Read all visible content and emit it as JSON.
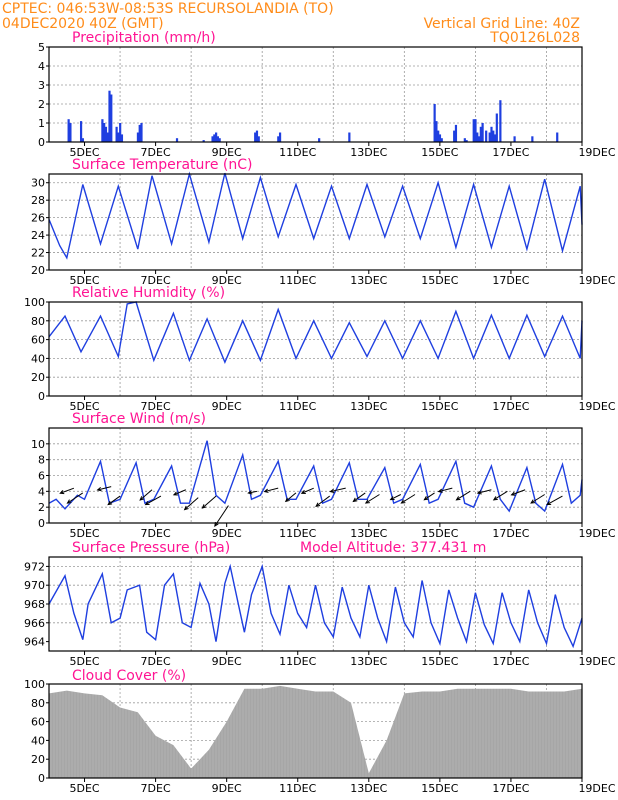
{
  "header": {
    "line1_left": "CPTEC:   046:53W-08:53S   RECURSOLANDIA (TO)",
    "line2_left": "04DEC2020 40Z (GMT)",
    "line2_right": "Vertical Grid Line: 40Z",
    "line3_right": "TQ0126L028"
  },
  "colors": {
    "header": "#ff8c1a",
    "panel_title": "#ff1493",
    "line": "#1f3fe0",
    "bar": "#1f3fe0",
    "cloud": "#a6a6a6",
    "arrow": "#000000",
    "grid": "#9a9a9a"
  },
  "chart_data": [
    {
      "type": "bar",
      "title": "Precipitation (mm/h)",
      "ylim": [
        0,
        5
      ],
      "yticks": [
        "0",
        "1",
        "2",
        "3",
        "4",
        "5"
      ],
      "xticklabels": [
        "5DEC",
        "7DEC",
        "9DEC",
        "11DEC",
        "13DEC",
        "15DEC",
        "17DEC",
        "19DEC"
      ],
      "grid": true,
      "series": [
        {
          "x": [
            4.55,
            4.6,
            4.9,
            4.95,
            5.5,
            5.55,
            5.6,
            5.65,
            5.7,
            5.75,
            5.9,
            5.95,
            6.0,
            6.05,
            6.5,
            6.55,
            6.6,
            7.6,
            8.35,
            8.6,
            8.65,
            8.7,
            8.75,
            8.8,
            9.8,
            9.85,
            9.9,
            10.45,
            10.5,
            11.6,
            12.45,
            14.85,
            14.9,
            14.95,
            15.0,
            15.05,
            15.4,
            15.45,
            15.7,
            15.75,
            15.95,
            16.0,
            16.05,
            16.1,
            16.15,
            16.2,
            16.3,
            16.4,
            16.45,
            16.5,
            16.55,
            16.6,
            16.7,
            17.1,
            17.6,
            18.3
          ],
          "values": [
            1.2,
            1.0,
            1.1,
            0.2,
            1.2,
            1.0,
            0.8,
            0.5,
            2.7,
            2.5,
            0.8,
            0.5,
            1.0,
            0.4,
            0.5,
            0.9,
            1.0,
            0.2,
            0.1,
            0.3,
            0.4,
            0.5,
            0.3,
            0.2,
            0.5,
            0.6,
            0.3,
            0.3,
            0.5,
            0.2,
            0.5,
            2.0,
            1.1,
            0.6,
            0.4,
            0.2,
            0.6,
            0.9,
            0.2,
            0.1,
            1.2,
            1.2,
            0.5,
            0.3,
            0.8,
            1.0,
            0.6,
            0.5,
            0.8,
            0.6,
            0.4,
            1.5,
            2.2,
            0.3,
            0.3,
            0.5
          ]
        }
      ]
    },
    {
      "type": "line",
      "title": "Surface Temperature (nC)",
      "ylim": [
        20,
        31
      ],
      "yticks": [
        "20",
        "22",
        "24",
        "26",
        "28",
        "30"
      ],
      "xticklabels": [
        "5DEC",
        "7DEC",
        "9DEC",
        "11DEC",
        "13DEC",
        "15DEC",
        "17DEC",
        "19DEC"
      ],
      "grid": true,
      "series": [
        {
          "x": [
            4.0,
            4.3,
            4.5,
            4.95,
            5.45,
            5.95,
            6.5,
            6.9,
            7.45,
            7.95,
            8.5,
            8.95,
            9.45,
            9.95,
            10.45,
            10.95,
            11.45,
            11.95,
            12.45,
            12.95,
            13.45,
            13.95,
            14.45,
            14.95,
            15.45,
            15.95,
            16.45,
            16.95,
            17.45,
            17.95,
            18.45,
            18.95,
            19.0
          ],
          "values": [
            25.8,
            22.8,
            21.4,
            29.8,
            23.0,
            29.6,
            22.4,
            30.8,
            23.0,
            31.0,
            23.2,
            31.1,
            23.6,
            30.6,
            23.8,
            29.8,
            23.6,
            29.6,
            23.6,
            29.8,
            23.8,
            29.6,
            23.6,
            30.0,
            22.6,
            29.8,
            22.6,
            29.6,
            22.4,
            30.4,
            22.2,
            29.6,
            25.2
          ]
        }
      ]
    },
    {
      "type": "line",
      "title": "Relative Humidity (%)",
      "ylim": [
        0,
        100
      ],
      "yticks": [
        "0",
        "20",
        "40",
        "60",
        "80",
        "100"
      ],
      "xticklabels": [
        "5DEC",
        "7DEC",
        "9DEC",
        "11DEC",
        "13DEC",
        "15DEC",
        "17DEC",
        "19DEC"
      ],
      "grid": true,
      "series": [
        {
          "x": [
            4.0,
            4.45,
            4.9,
            5.45,
            5.95,
            6.2,
            6.45,
            6.95,
            7.5,
            7.95,
            8.45,
            8.95,
            9.45,
            9.95,
            10.45,
            10.95,
            11.45,
            11.95,
            12.45,
            12.95,
            13.45,
            13.95,
            14.45,
            14.95,
            15.45,
            15.95,
            16.45,
            16.95,
            17.45,
            17.95,
            18.45,
            18.95,
            19.0
          ],
          "values": [
            63,
            85,
            47,
            85,
            42,
            98,
            100,
            38,
            88,
            38,
            82,
            36,
            80,
            38,
            92,
            40,
            80,
            40,
            78,
            42,
            80,
            40,
            80,
            40,
            90,
            40,
            86,
            40,
            86,
            42,
            85,
            40,
            80
          ]
        }
      ]
    },
    {
      "type": "line",
      "title": "Surface Wind (m/s)",
      "ylim": [
        0,
        12
      ],
      "yticks": [
        "0",
        "2",
        "4",
        "6",
        "8",
        "10"
      ],
      "xticklabels": [
        "5DEC",
        "7DEC",
        "9DEC",
        "11DEC",
        "13DEC",
        "15DEC",
        "17DEC",
        "19DEC"
      ],
      "grid": true,
      "series": [
        {
          "x": [
            4.0,
            4.2,
            4.45,
            4.8,
            5.0,
            5.45,
            5.7,
            6.0,
            6.45,
            6.7,
            6.95,
            7.45,
            7.7,
            7.95,
            8.45,
            8.7,
            8.95,
            9.45,
            9.7,
            9.95,
            10.45,
            10.7,
            10.95,
            11.45,
            11.7,
            11.95,
            12.45,
            12.7,
            12.95,
            13.45,
            13.7,
            13.95,
            14.45,
            14.7,
            14.95,
            15.45,
            15.7,
            15.95,
            16.45,
            16.7,
            16.95,
            17.45,
            17.7,
            17.95,
            18.45,
            18.7,
            18.95,
            19.0
          ],
          "values": [
            2.5,
            3.0,
            1.8,
            3.5,
            3.0,
            7.8,
            2.5,
            3.0,
            7.6,
            2.5,
            3.0,
            7.2,
            2.5,
            2.5,
            10.4,
            3.5,
            2.5,
            8.6,
            3.0,
            3.5,
            7.8,
            3.0,
            3.0,
            7.2,
            2.5,
            3.0,
            7.6,
            3.0,
            3.0,
            7.0,
            2.5,
            3.0,
            7.4,
            2.5,
            3.0,
            7.8,
            2.5,
            2.0,
            7.2,
            3.0,
            1.5,
            7.0,
            2.5,
            1.5,
            7.4,
            2.5,
            3.5,
            5.5
          ]
        }
      ],
      "wind_vectors": {
        "x": [
          4.7,
          4.95,
          5.75,
          6.0,
          6.9,
          7.15,
          7.85,
          8.2,
          8.7,
          9.05,
          9.85,
          10.45,
          10.95,
          11.45,
          11.9,
          12.35,
          12.9,
          13.3,
          13.9,
          14.3,
          14.85,
          15.35,
          15.85,
          16.45,
          16.9,
          17.4,
          17.95,
          18.45
        ],
        "y": [
          4.4,
          3.8,
          4.6,
          3.4,
          4.2,
          3.4,
          4.2,
          3.2,
          3.4,
          2.2,
          4.0,
          4.4,
          3.8,
          4.4,
          3.4,
          4.4,
          3.8,
          3.6,
          3.6,
          3.6,
          3.8,
          4.4,
          4.0,
          4.2,
          4.0,
          4.2,
          3.6,
          3.4
        ],
        "u": [
          -0.8,
          -0.9,
          -0.8,
          -0.7,
          -0.7,
          -0.9,
          -0.7,
          -0.8,
          -0.8,
          -0.8,
          -0.5,
          -0.8,
          -0.6,
          -0.7,
          -0.8,
          -0.9,
          -0.7,
          -0.8,
          -0.6,
          -0.8,
          -0.6,
          -0.8,
          -0.8,
          -0.8,
          -0.8,
          -0.8,
          -0.8,
          -0.9
        ],
        "v": [
          -0.3,
          -0.6,
          -0.2,
          -0.5,
          -0.6,
          -0.5,
          -0.3,
          -0.7,
          -0.7,
          -1.2,
          -0.1,
          -0.2,
          -0.5,
          -0.3,
          -0.6,
          -0.2,
          -0.5,
          -0.5,
          -0.3,
          -0.5,
          -0.4,
          -0.2,
          -0.5,
          -0.2,
          -0.5,
          -0.3,
          -0.5,
          -0.5
        ]
      }
    },
    {
      "type": "line",
      "title": "Surface Pressure (hPa)",
      "annotation": "Model Altitude: 377.431  m",
      "ylim": [
        963,
        973
      ],
      "yticks": [
        "964",
        "966",
        "968",
        "970",
        "972"
      ],
      "xticklabels": [
        "5DEC",
        "7DEC",
        "9DEC",
        "11DEC",
        "13DEC",
        "15DEC",
        "17DEC",
        "19DEC"
      ],
      "grid": true,
      "series": [
        {
          "x": [
            4.0,
            4.45,
            4.7,
            4.95,
            5.1,
            5.5,
            5.75,
            6.0,
            6.2,
            6.55,
            6.75,
            7.0,
            7.25,
            7.5,
            7.75,
            8.0,
            8.25,
            8.5,
            8.7,
            8.95,
            9.1,
            9.5,
            9.7,
            10.0,
            10.25,
            10.5,
            10.75,
            11.0,
            11.25,
            11.5,
            11.75,
            12.0,
            12.25,
            12.5,
            12.75,
            13.0,
            13.25,
            13.5,
            13.75,
            14.0,
            14.25,
            14.5,
            14.75,
            15.0,
            15.25,
            15.5,
            15.75,
            16.0,
            16.25,
            16.5,
            16.75,
            17.0,
            17.25,
            17.5,
            17.75,
            18.0,
            18.25,
            18.5,
            18.75,
            19.0
          ],
          "values": [
            968.0,
            971.0,
            967.0,
            964.2,
            968.0,
            971.2,
            966.0,
            966.5,
            969.5,
            970.0,
            965.0,
            964.2,
            970.0,
            971.2,
            966.0,
            965.5,
            970.2,
            968.0,
            964.0,
            970.2,
            972.0,
            965.0,
            969.0,
            972.0,
            967.0,
            964.8,
            970.0,
            967.0,
            965.5,
            970.0,
            966.0,
            964.5,
            969.8,
            966.5,
            964.5,
            970.0,
            966.5,
            964.0,
            969.8,
            966.0,
            964.5,
            970.5,
            966.0,
            963.8,
            969.5,
            966.5,
            964.0,
            969.2,
            965.8,
            963.8,
            969.2,
            966.0,
            964.0,
            969.5,
            966.0,
            963.8,
            969.0,
            965.5,
            963.5,
            966.5
          ]
        }
      ]
    },
    {
      "type": "bar",
      "title": "Cloud Cover (%)",
      "ylim": [
        0,
        100
      ],
      "yticks": [
        "0",
        "20",
        "40",
        "60",
        "80",
        "100"
      ],
      "xticklabels": [
        "5DEC",
        "7DEC",
        "9DEC",
        "11DEC",
        "13DEC",
        "15DEC",
        "17DEC",
        "19DEC"
      ],
      "grid": true,
      "series": [
        {
          "x": [
            4.0,
            4.5,
            5.0,
            5.5,
            6.0,
            6.5,
            7.0,
            7.5,
            8.0,
            8.5,
            9.0,
            9.5,
            10.0,
            10.5,
            11.0,
            11.5,
            12.0,
            12.5,
            13.0,
            13.5,
            14.0,
            14.5,
            15.0,
            15.5,
            16.0,
            16.5,
            17.0,
            17.5,
            18.0,
            18.5,
            19.0
          ],
          "values": [
            90,
            93,
            90,
            88,
            75,
            70,
            45,
            35,
            10,
            30,
            60,
            95,
            95,
            98,
            95,
            92,
            92,
            80,
            5,
            40,
            90,
            92,
            92,
            95,
            95,
            95,
            95,
            92,
            92,
            92,
            95
          ]
        }
      ]
    }
  ]
}
